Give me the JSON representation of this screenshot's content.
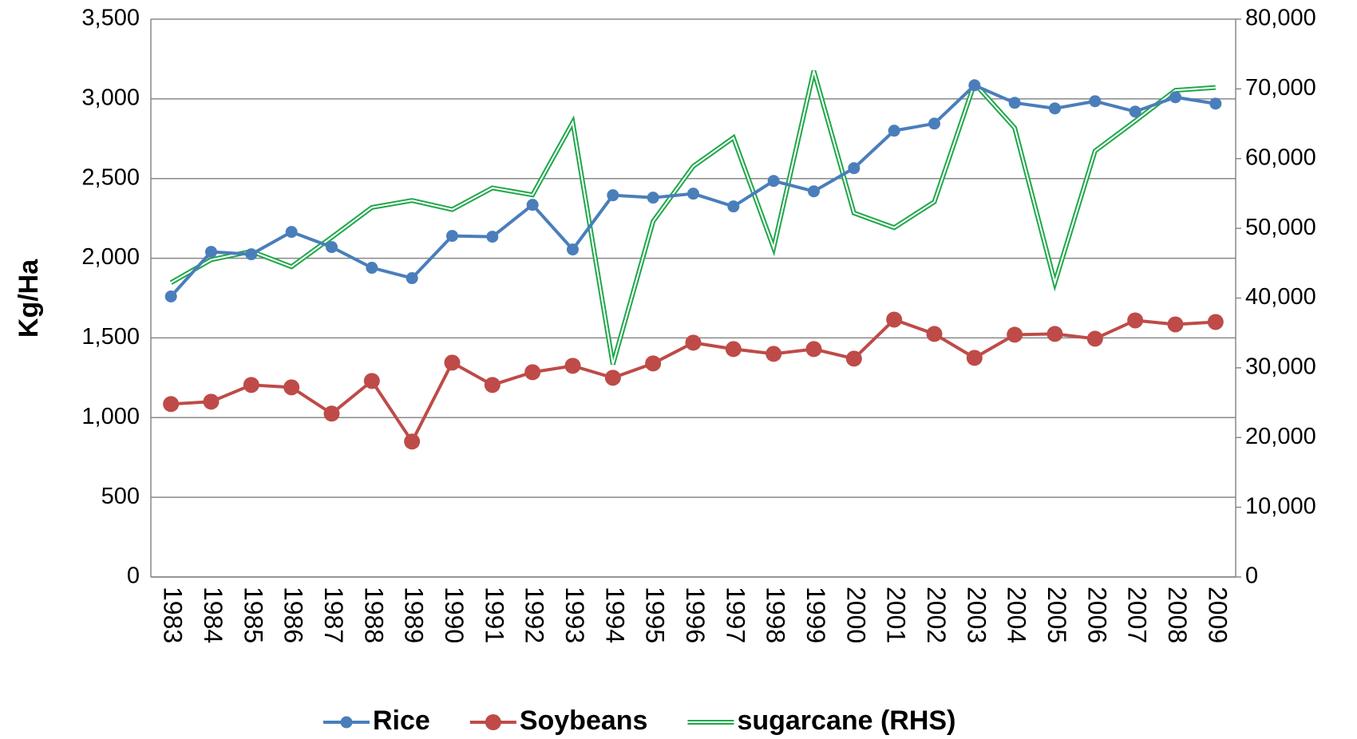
{
  "chart_data": {
    "type": "line",
    "y_label": "Kg/Ha",
    "categories": [
      "1983",
      "1984",
      "1985",
      "1986",
      "1987",
      "1988",
      "1989",
      "1990",
      "1991",
      "1992",
      "1993",
      "1994",
      "1995",
      "1996",
      "1997",
      "1998",
      "1999",
      "2000",
      "2001",
      "2002",
      "2003",
      "2004",
      "2005",
      "2006",
      "2007",
      "2008",
      "2009"
    ],
    "ylim": [
      0,
      3500
    ],
    "yticks": [
      0,
      500,
      {
        "value": 1000,
        "label": "1,000"
      },
      {
        "value": 1500,
        "label": "1,500"
      },
      {
        "value": 2000,
        "label": "2,000"
      },
      {
        "value": 2500,
        "label": "2,500"
      },
      {
        "value": 3000,
        "label": "3,000"
      },
      {
        "value": 3500,
        "label": "3,500"
      }
    ],
    "y2lim": [
      0,
      80000
    ],
    "y2ticks": [
      0,
      {
        "value": 10000,
        "label": "10,000"
      },
      {
        "value": 20000,
        "label": "20,000"
      },
      {
        "value": 30000,
        "label": "30,000"
      },
      {
        "value": 40000,
        "label": "40,000"
      },
      {
        "value": 50000,
        "label": "50,000"
      },
      {
        "value": 60000,
        "label": "60,000"
      },
      {
        "value": 70000,
        "label": "70,000"
      },
      {
        "value": 80000,
        "label": "80,000"
      }
    ],
    "grid": true,
    "legend": "bottom",
    "series": [
      {
        "name": "Rice",
        "color": "#4a7ebb",
        "marker": true,
        "values": [
          1760,
          2040,
          2025,
          2165,
          2070,
          1940,
          1875,
          2140,
          2135,
          2335,
          2055,
          2395,
          2380,
          2405,
          2325,
          2485,
          2420,
          2565,
          2800,
          2845,
          3085,
          2975,
          2940,
          2985,
          2920,
          3010,
          2970
        ]
      },
      {
        "name": "Soybeans",
        "color": "#be4b48",
        "marker": true,
        "values": [
          1085,
          1100,
          1205,
          1190,
          1025,
          1230,
          850,
          1345,
          1205,
          1285,
          1325,
          1250,
          1340,
          1470,
          1430,
          1400,
          1430,
          1370,
          1615,
          1525,
          1375,
          1520,
          1525,
          1495,
          1610,
          1585,
          1600
        ]
      },
      {
        "name": "sugarcane (RHS)",
        "color": "#1fa84a",
        "axis": "y2",
        "marker": false,
        "values": [
          42200,
          45500,
          46700,
          44500,
          48700,
          53000,
          54000,
          52700,
          55800,
          54800,
          65200,
          30500,
          51000,
          58900,
          63000,
          47200,
          72600,
          52200,
          50100,
          53800,
          70800,
          64400,
          42200,
          61100,
          65400,
          69800,
          70200
        ]
      }
    ]
  }
}
